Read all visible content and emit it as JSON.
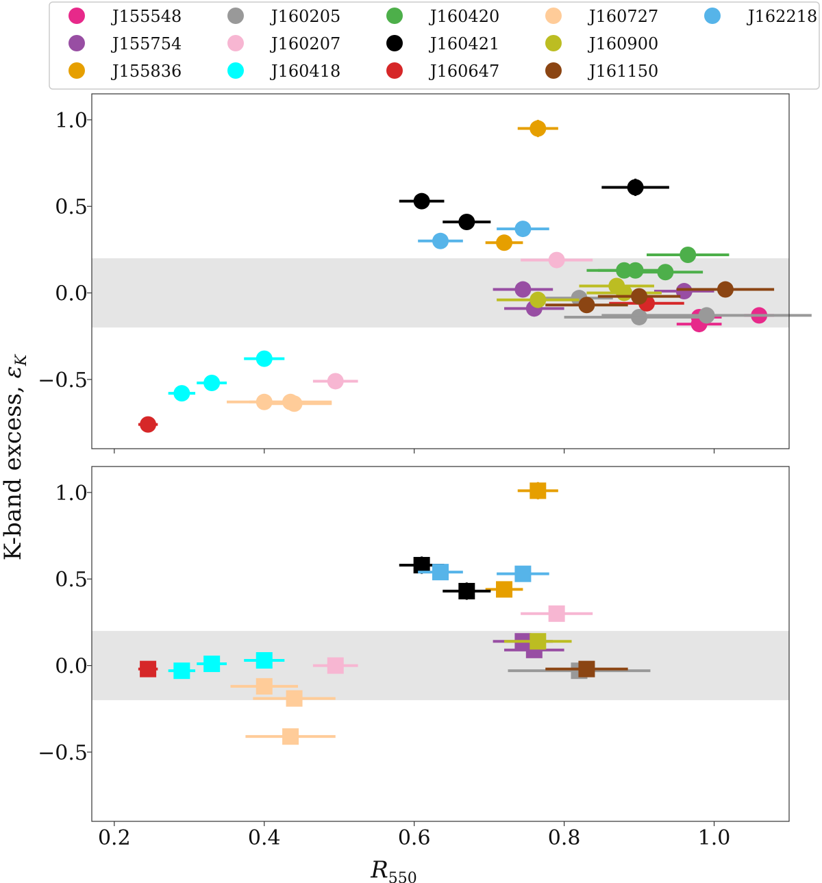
{
  "legend": {
    "placement": "top, outside plot, 5 columns",
    "entries": [
      {
        "name": "J155548",
        "color": "#e7298a"
      },
      {
        "name": "J155754",
        "color": "#984ea3"
      },
      {
        "name": "J155836",
        "color": "#e69f00"
      },
      {
        "name": "J160205",
        "color": "#999999"
      },
      {
        "name": "J160207",
        "color": "#f7b6d2"
      },
      {
        "name": "J160418",
        "color": "#00ffff"
      },
      {
        "name": "J160420",
        "color": "#4daf4a"
      },
      {
        "name": "J160421",
        "color": "#000000"
      },
      {
        "name": "J160647",
        "color": "#d62728"
      },
      {
        "name": "J160727",
        "color": "#ffcc99"
      },
      {
        "name": "J160900",
        "color": "#bcbd22"
      },
      {
        "name": "J161150",
        "color": "#8b4513"
      },
      {
        "name": "J162218",
        "color": "#56b4e9"
      }
    ]
  },
  "chart_data": [
    {
      "type": "scatter",
      "marker": "circle",
      "xlabel": "R550",
      "ylabel": "K-band excess, εK",
      "xlim": [
        0.17,
        1.1
      ],
      "ylim": [
        -0.9,
        1.15
      ],
      "xticks": [
        "0.2",
        "0.4",
        "0.6",
        "0.8",
        "1.0"
      ],
      "yticks": [
        "−0.5",
        "0.0",
        "0.5",
        "1.0"
      ],
      "shaded_band": [
        -0.2,
        0.2
      ],
      "series": [
        {
          "name": "J155548",
          "points": [
            {
              "x": 0.98,
              "y": -0.14,
              "xerr": 0.03,
              "yerr": 0.03
            },
            {
              "x": 0.98,
              "y": -0.18,
              "xerr": 0.03,
              "yerr": 0.03
            },
            {
              "x": 1.06,
              "y": -0.13,
              "xerr": 0.02,
              "yerr": 0.03
            }
          ]
        },
        {
          "name": "J155754",
          "points": [
            {
              "x": 0.745,
              "y": 0.02,
              "xerr": 0.04,
              "yerr": 0.03
            },
            {
              "x": 0.76,
              "y": -0.09,
              "xerr": 0.04,
              "yerr": 0.03
            },
            {
              "x": 0.96,
              "y": 0.01,
              "xerr": 0.04,
              "yerr": 0.03
            }
          ]
        },
        {
          "name": "J155836",
          "points": [
            {
              "x": 0.765,
              "y": 0.95,
              "xerr": 0.027,
              "yerr": 0.05
            },
            {
              "x": 0.72,
              "y": 0.29,
              "xerr": 0.025,
              "yerr": 0.03
            }
          ]
        },
        {
          "name": "J160205",
          "points": [
            {
              "x": 0.82,
              "y": -0.03,
              "xerr": 0.045,
              "yerr": 0.03
            },
            {
              "x": 0.9,
              "y": -0.14,
              "xerr": 0.1,
              "yerr": 0.03
            },
            {
              "x": 0.99,
              "y": -0.13,
              "xerr": 0.14,
              "yerr": 0.03
            }
          ]
        },
        {
          "name": "J160207",
          "points": [
            {
              "x": 0.79,
              "y": 0.19,
              "xerr": 0.048,
              "yerr": 0.03
            },
            {
              "x": 0.495,
              "y": -0.51,
              "xerr": 0.03,
              "yerr": 0.03
            }
          ]
        },
        {
          "name": "J160418",
          "points": [
            {
              "x": 0.29,
              "y": -0.58,
              "xerr": 0.018,
              "yerr": 0.03
            },
            {
              "x": 0.33,
              "y": -0.52,
              "xerr": 0.02,
              "yerr": 0.03
            },
            {
              "x": 0.4,
              "y": -0.38,
              "xerr": 0.027,
              "yerr": 0.03
            }
          ]
        },
        {
          "name": "J160420",
          "points": [
            {
              "x": 0.88,
              "y": 0.13,
              "xerr": 0.05,
              "yerr": 0.03
            },
            {
              "x": 0.895,
              "y": 0.13,
              "xerr": 0.05,
              "yerr": 0.03
            },
            {
              "x": 0.935,
              "y": 0.12,
              "xerr": 0.05,
              "yerr": 0.03
            },
            {
              "x": 0.965,
              "y": 0.22,
              "xerr": 0.055,
              "yerr": 0.03
            }
          ]
        },
        {
          "name": "J160421",
          "points": [
            {
              "x": 0.61,
              "y": 0.53,
              "xerr": 0.03,
              "yerr": 0.04
            },
            {
              "x": 0.67,
              "y": 0.41,
              "xerr": 0.032,
              "yerr": 0.04
            },
            {
              "x": 0.895,
              "y": 0.61,
              "xerr": 0.045,
              "yerr": 0.05
            }
          ]
        },
        {
          "name": "J160647",
          "points": [
            {
              "x": 0.245,
              "y": -0.76,
              "xerr": 0.013,
              "yerr": 0.03
            },
            {
              "x": 0.91,
              "y": -0.06,
              "xerr": 0.05,
              "yerr": 0.03
            }
          ]
        },
        {
          "name": "J160727",
          "points": [
            {
              "x": 0.4,
              "y": -0.63,
              "xerr": 0.05,
              "yerr": 0.03
            },
            {
              "x": 0.435,
              "y": -0.63,
              "xerr": 0.055,
              "yerr": 0.03
            },
            {
              "x": 0.44,
              "y": -0.64,
              "xerr": 0.05,
              "yerr": 0.03
            }
          ]
        },
        {
          "name": "J160900",
          "points": [
            {
              "x": 0.765,
              "y": -0.04,
              "xerr": 0.055,
              "yerr": 0.03
            },
            {
              "x": 0.87,
              "y": 0.04,
              "xerr": 0.05,
              "yerr": 0.03
            },
            {
              "x": 0.88,
              "y": 0.0,
              "xerr": 0.05,
              "yerr": 0.03
            }
          ]
        },
        {
          "name": "J161150",
          "points": [
            {
              "x": 0.83,
              "y": -0.07,
              "xerr": 0.055,
              "yerr": 0.03
            },
            {
              "x": 0.9,
              "y": -0.02,
              "xerr": 0.055,
              "yerr": 0.03
            },
            {
              "x": 1.015,
              "y": 0.02,
              "xerr": 0.065,
              "yerr": 0.03
            }
          ]
        },
        {
          "name": "J162218",
          "points": [
            {
              "x": 0.635,
              "y": 0.3,
              "xerr": 0.03,
              "yerr": 0.03
            },
            {
              "x": 0.745,
              "y": 0.37,
              "xerr": 0.035,
              "yerr": 0.03
            }
          ]
        }
      ]
    },
    {
      "type": "scatter",
      "marker": "square",
      "xlabel": "R550",
      "ylabel": "K-band excess, εK",
      "xlim": [
        0.17,
        1.1
      ],
      "ylim": [
        -0.9,
        1.15
      ],
      "xticks": [
        "0.2",
        "0.4",
        "0.6",
        "0.8",
        "1.0"
      ],
      "yticks": [
        "−0.5",
        "0.0",
        "0.5",
        "1.0"
      ],
      "shaded_band": [
        -0.2,
        0.2
      ],
      "series": [
        {
          "name": "J155754",
          "points": [
            {
              "x": 0.745,
              "y": 0.14,
              "xerr": 0.04,
              "yerr": 0.04
            },
            {
              "x": 0.76,
              "y": 0.09,
              "xerr": 0.04,
              "yerr": 0.04
            }
          ]
        },
        {
          "name": "J155836",
          "points": [
            {
              "x": 0.765,
              "y": 1.01,
              "xerr": 0.027,
              "yerr": 0.05
            },
            {
              "x": 0.72,
              "y": 0.44,
              "xerr": 0.025,
              "yerr": 0.04
            }
          ]
        },
        {
          "name": "J160205",
          "points": [
            {
              "x": 0.82,
              "y": -0.03,
              "xerr": 0.095,
              "yerr": 0.04
            }
          ]
        },
        {
          "name": "J160207",
          "points": [
            {
              "x": 0.79,
              "y": 0.3,
              "xerr": 0.048,
              "yerr": 0.04
            },
            {
              "x": 0.495,
              "y": 0.0,
              "xerr": 0.03,
              "yerr": 0.04
            }
          ]
        },
        {
          "name": "J160418",
          "points": [
            {
              "x": 0.29,
              "y": -0.03,
              "xerr": 0.018,
              "yerr": 0.04
            },
            {
              "x": 0.33,
              "y": 0.01,
              "xerr": 0.02,
              "yerr": 0.04
            },
            {
              "x": 0.4,
              "y": 0.03,
              "xerr": 0.027,
              "yerr": 0.04
            }
          ]
        },
        {
          "name": "J160421",
          "points": [
            {
              "x": 0.61,
              "y": 0.58,
              "xerr": 0.03,
              "yerr": 0.05
            },
            {
              "x": 0.67,
              "y": 0.43,
              "xerr": 0.032,
              "yerr": 0.05
            }
          ]
        },
        {
          "name": "J160647",
          "points": [
            {
              "x": 0.245,
              "y": -0.02,
              "xerr": 0.013,
              "yerr": 0.04
            }
          ]
        },
        {
          "name": "J160727",
          "points": [
            {
              "x": 0.4,
              "y": -0.12,
              "xerr": 0.045,
              "yerr": 0.04
            },
            {
              "x": 0.44,
              "y": -0.19,
              "xerr": 0.055,
              "yerr": 0.04
            },
            {
              "x": 0.435,
              "y": -0.41,
              "xerr": 0.06,
              "yerr": 0.04
            }
          ]
        },
        {
          "name": "J160900",
          "points": [
            {
              "x": 0.765,
              "y": 0.14,
              "xerr": 0.045,
              "yerr": 0.04
            }
          ]
        },
        {
          "name": "J161150",
          "points": [
            {
              "x": 0.83,
              "y": -0.02,
              "xerr": 0.055,
              "yerr": 0.04
            }
          ]
        },
        {
          "name": "J162218",
          "points": [
            {
              "x": 0.635,
              "y": 0.54,
              "xerr": 0.03,
              "yerr": 0.04
            },
            {
              "x": 0.745,
              "y": 0.53,
              "xerr": 0.035,
              "yerr": 0.04
            }
          ]
        }
      ]
    }
  ]
}
